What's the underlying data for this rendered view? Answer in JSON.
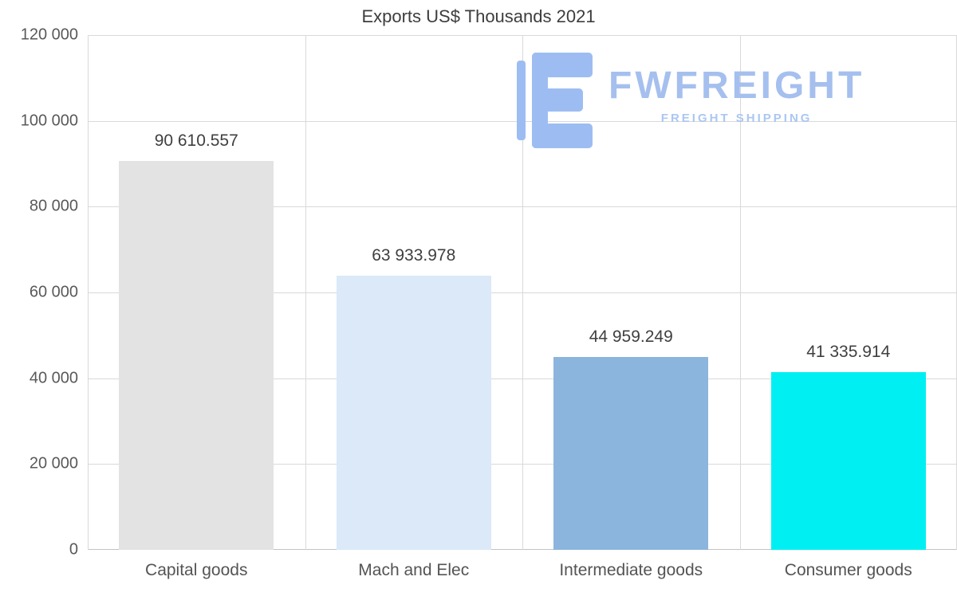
{
  "chart_data": {
    "type": "bar",
    "title": "Exports US$ Thousands 2021",
    "categories": [
      "Capital goods",
      "Mach and Elec",
      "Intermediate goods",
      "Consumer goods"
    ],
    "values": [
      90610.557,
      63933.978,
      44959.249,
      41335.914
    ],
    "value_labels": [
      "90 610.557",
      "63 933.978",
      "44 959.249",
      "41 335.914"
    ],
    "bar_colors": [
      "#e3e3e3",
      "#dbe9f8",
      "#8bb5dc",
      "#00eff2"
    ],
    "xlabel": "",
    "ylabel": "",
    "ylim": [
      0,
      120000
    ],
    "ytick_values": [
      0,
      20000,
      40000,
      60000,
      80000,
      100000,
      120000
    ],
    "ytick_labels": [
      "0",
      "20 000",
      "40 000",
      "60 000",
      "80 000",
      "100 000",
      "120 000"
    ],
    "grid": true,
    "legend": false,
    "gridline_color": "#d9d9d9"
  },
  "watermark": {
    "brand": "FWFREIGHT",
    "tagline": "FREIGHT SHIPPING",
    "color": "#a5c0ee"
  }
}
